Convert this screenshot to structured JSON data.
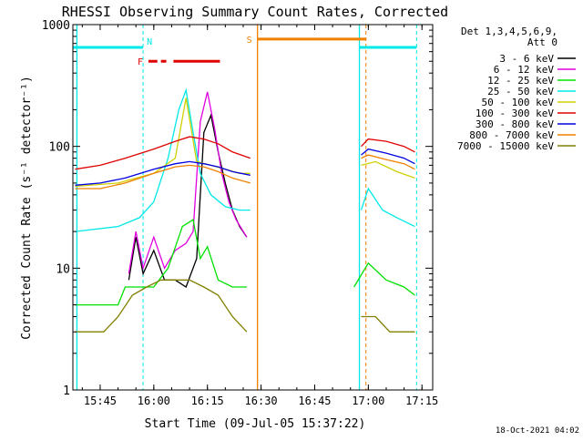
{
  "chart_data": {
    "type": "line",
    "title": "RHESSI Observing Summary Count Rates, Corrected",
    "xlabel": "Start Time (09-Jul-05 15:37:22)",
    "ylabel": "Corrected Count Rate (s⁻¹ detector⁻¹)",
    "y_scale": "log",
    "ylim": [
      1,
      1000
    ],
    "xlim": [
      "15:37:22",
      "17:18:00"
    ],
    "x_ticks": [
      "15:45",
      "16:00",
      "16:15",
      "16:30",
      "16:45",
      "17:00",
      "17:15"
    ],
    "y_ticks": [
      "1",
      "10",
      "100",
      "1000"
    ],
    "legend_header": [
      "Det 1,3,4,5,6,9,",
      "Att 0"
    ],
    "legend_position": "right",
    "timestamp": "18-Oct-2021 04:02",
    "series": [
      {
        "name": "3 - 6 keV",
        "color": "#000000",
        "x": [
          "15:53",
          "15:55",
          "15:57",
          "16:00",
          "16:03",
          "16:06",
          "16:09",
          "16:12",
          "16:14",
          "16:16",
          "16:18",
          "16:20",
          "16:22",
          "16:24",
          "16:26"
        ],
        "y": [
          8,
          18,
          9,
          14,
          8,
          8,
          7,
          12,
          130,
          180,
          90,
          50,
          30,
          22,
          18
        ]
      },
      {
        "name": "6 - 12 keV",
        "color": "#e000e0",
        "x": [
          "15:53",
          "15:55",
          "15:57",
          "16:00",
          "16:03",
          "16:06",
          "16:09",
          "16:11",
          "16:13",
          "16:15",
          "16:17",
          "16:19",
          "16:21",
          "16:23",
          "16:26"
        ],
        "y": [
          9,
          20,
          10,
          18,
          10,
          14,
          16,
          20,
          160,
          280,
          140,
          60,
          35,
          25,
          18
        ]
      },
      {
        "name": "12 - 25 keV",
        "color": "#00e000",
        "x": [
          "15:38",
          "15:46",
          "15:50",
          "15:52",
          "15:56",
          "16:00",
          "16:04",
          "16:08",
          "16:11",
          "16:13",
          "16:15",
          "16:18",
          "16:22",
          "16:26",
          "16:56",
          "17:00",
          "17:05",
          "17:10",
          "17:13"
        ],
        "y": [
          5,
          5,
          5,
          7,
          7,
          7,
          10,
          22,
          25,
          12,
          15,
          8,
          7,
          7,
          7,
          11,
          8,
          7,
          6
        ]
      },
      {
        "name": "25 - 50 keV",
        "color": "#00e8e8",
        "x": [
          "15:38",
          "15:50",
          "15:56",
          "16:00",
          "16:04",
          "16:07",
          "16:09",
          "16:11",
          "16:13",
          "16:16",
          "16:20",
          "16:24",
          "16:27",
          "16:58",
          "17:00",
          "17:04",
          "17:08",
          "17:13"
        ],
        "y": [
          20,
          22,
          26,
          35,
          80,
          200,
          290,
          130,
          60,
          40,
          32,
          30,
          30,
          30,
          45,
          30,
          26,
          22
        ]
      },
      {
        "name": "50 - 100 keV",
        "color": "#d0d000",
        "x": [
          "15:38",
          "15:50",
          "16:00",
          "16:06",
          "16:09",
          "16:12",
          "16:16",
          "16:20",
          "16:24",
          "16:27",
          "16:58",
          "17:02",
          "17:08",
          "17:13"
        ],
        "y": [
          47,
          50,
          60,
          80,
          250,
          75,
          70,
          65,
          60,
          60,
          70,
          75,
          62,
          55
        ]
      },
      {
        "name": "100 - 300 keV",
        "color": "#e00000",
        "x": [
          "15:38",
          "15:45",
          "15:52",
          "16:00",
          "16:06",
          "16:10",
          "16:14",
          "16:18",
          "16:22",
          "16:27",
          "16:58",
          "17:00",
          "17:05",
          "17:10",
          "17:13"
        ],
        "y": [
          65,
          70,
          80,
          95,
          110,
          120,
          115,
          105,
          90,
          80,
          100,
          115,
          110,
          100,
          90
        ]
      },
      {
        "name": "300 - 800 keV",
        "color": "#0000e0",
        "x": [
          "15:38",
          "15:45",
          "15:52",
          "16:00",
          "16:06",
          "16:10",
          "16:14",
          "16:18",
          "16:22",
          "16:27",
          "16:58",
          "17:00",
          "17:05",
          "17:10",
          "17:13"
        ],
        "y": [
          48,
          50,
          55,
          65,
          72,
          75,
          72,
          68,
          62,
          58,
          85,
          95,
          88,
          80,
          72
        ]
      },
      {
        "name": "800 - 7000 keV",
        "color": "#f08000",
        "x": [
          "15:38",
          "15:45",
          "15:52",
          "16:00",
          "16:06",
          "16:10",
          "16:14",
          "16:18",
          "16:22",
          "16:27",
          "16:58",
          "17:00",
          "17:05",
          "17:10",
          "17:13"
        ],
        "y": [
          45,
          45,
          50,
          60,
          68,
          70,
          68,
          62,
          55,
          50,
          80,
          85,
          78,
          72,
          65
        ]
      },
      {
        "name": "7000 - 15000 keV",
        "color": "#808000",
        "x": [
          "15:38",
          "15:46",
          "15:50",
          "15:54",
          "15:58",
          "16:02",
          "16:06",
          "16:10",
          "16:14",
          "16:18",
          "16:22",
          "16:26",
          "16:58",
          "17:02",
          "17:06",
          "17:10",
          "17:13"
        ],
        "y": [
          3,
          3,
          4,
          6,
          7,
          8,
          8,
          8,
          7,
          6,
          4,
          3,
          4,
          4,
          3,
          3,
          3
        ]
      }
    ],
    "annotations": {
      "N_label": "N",
      "F_label": "F",
      "S_label": "S",
      "night_cyan_solid_times": [
        "15:38:30",
        "16:57:30"
      ],
      "night_cyan_dashed_times": [
        "15:57:00",
        "17:13:30"
      ],
      "saa_orange_solid_time": "16:29:00",
      "saa_orange_dashed_time": "16:59:20",
      "night_bars": [
        [
          "15:37:22",
          "15:57:00"
        ],
        [
          "16:57:30",
          "17:13:30"
        ]
      ],
      "saa_bar": [
        "16:29:00",
        "16:59:20"
      ],
      "flare_segments": [
        [
          "15:58:30",
          "16:01:00"
        ],
        [
          "16:02:00",
          "16:03:30"
        ],
        [
          "16:05:30",
          "16:18:30"
        ]
      ],
      "flare_level": 500,
      "night_level": 650,
      "saa_level": 760
    }
  }
}
